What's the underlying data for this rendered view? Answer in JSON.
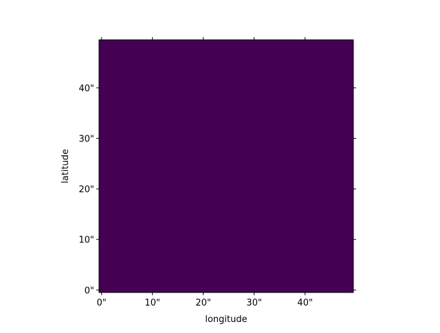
{
  "chart_data": {
    "type": "heatmap",
    "title": "",
    "xlabel": "longitude",
    "ylabel": "latitude",
    "x_ticks": [
      {
        "value": 0,
        "label": "0\""
      },
      {
        "value": 10,
        "label": "10\""
      },
      {
        "value": 20,
        "label": "20\""
      },
      {
        "value": 30,
        "label": "30\""
      },
      {
        "value": 40,
        "label": "40\""
      }
    ],
    "y_ticks": [
      {
        "value": 0,
        "label": "0\""
      },
      {
        "value": 10,
        "label": "10\""
      },
      {
        "value": 20,
        "label": "20\""
      },
      {
        "value": 30,
        "label": "30\""
      },
      {
        "value": 40,
        "label": "40\""
      }
    ],
    "xlim": [
      -0.5,
      49.5
    ],
    "ylim": [
      -0.5,
      49.5
    ],
    "image": {
      "description": "uniform single-valued image",
      "grid_shape": [
        50,
        50
      ],
      "fill_color": "#440154",
      "colormap": "viridis"
    },
    "grid": false,
    "legend": "none",
    "colors": {
      "axes": "#000000",
      "background": "#ffffff"
    }
  }
}
